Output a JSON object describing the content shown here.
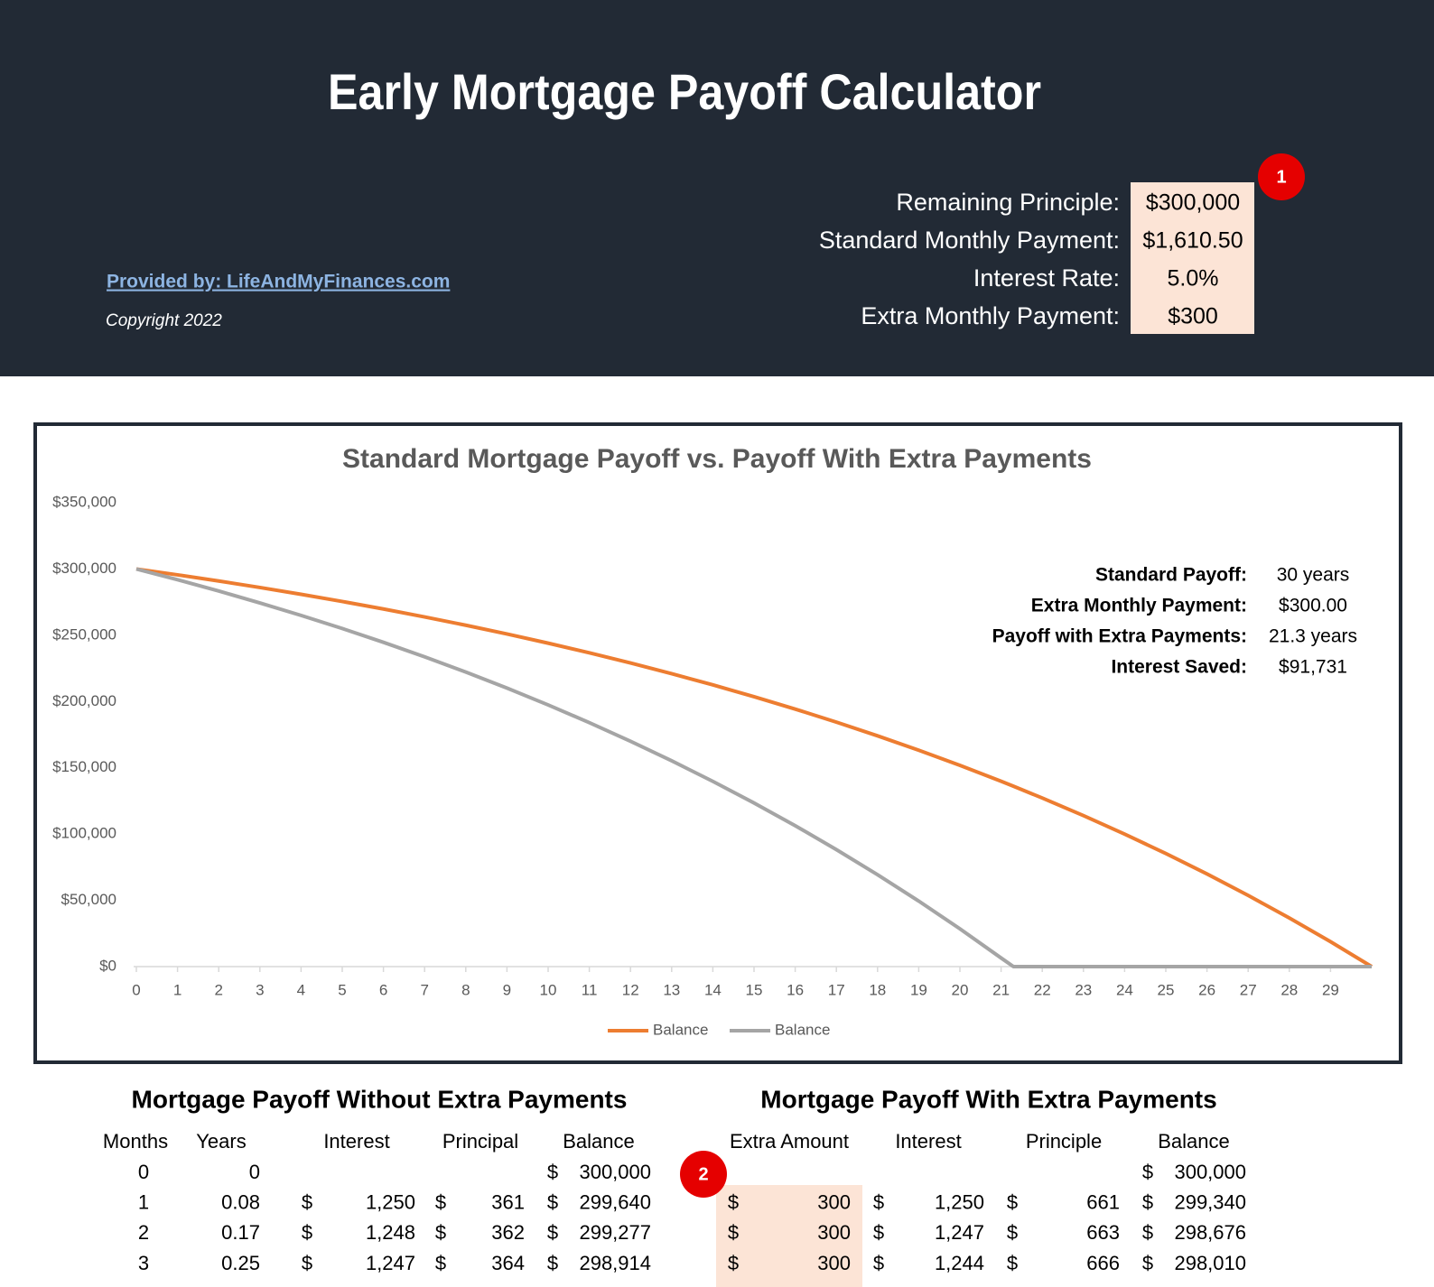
{
  "header": {
    "title": "Early Mortgage Payoff Calculator",
    "link": "Provided by: LifeAndMyFinances.com",
    "copyright": "Copyright 2022",
    "inputs": [
      {
        "label": "Remaining Principle:",
        "value": "$300,000"
      },
      {
        "label": "Standard Monthly Payment:",
        "value": "$1,610.50"
      },
      {
        "label": "Interest Rate:",
        "value": "5.0%"
      },
      {
        "label": "Extra Monthly Payment:",
        "value": "$300"
      }
    ],
    "marker": "1"
  },
  "chart_data": {
    "type": "line",
    "title": "Standard Mortgage Payoff vs. Payoff With Extra Payments",
    "x": [
      0,
      1,
      2,
      3,
      4,
      5,
      6,
      7,
      8,
      9,
      10,
      11,
      12,
      13,
      14,
      15,
      16,
      17,
      18,
      19,
      20,
      21,
      21.3,
      22,
      23,
      24,
      25,
      26,
      27,
      28,
      29,
      30
    ],
    "xlim": [
      0,
      30
    ],
    "xticks": [
      0,
      1,
      2,
      3,
      4,
      5,
      6,
      7,
      8,
      9,
      10,
      11,
      12,
      13,
      14,
      15,
      16,
      17,
      18,
      19,
      20,
      21,
      22,
      23,
      24,
      25,
      26,
      27,
      28,
      29
    ],
    "ylim": [
      0,
      350000
    ],
    "yticks": [
      {
        "value": 0,
        "label": "$0"
      },
      {
        "value": 50000,
        "label": "$50,000"
      },
      {
        "value": 100000,
        "label": "$100,000"
      },
      {
        "value": 150000,
        "label": "$150,000"
      },
      {
        "value": 200000,
        "label": "$200,000"
      },
      {
        "value": 250000,
        "label": "$250,000"
      },
      {
        "value": 300000,
        "label": "$300,000"
      },
      {
        "value": 350000,
        "label": "$350,000"
      }
    ],
    "series": [
      {
        "name": "Balance",
        "color": "#ed7d31",
        "values": [
          300000,
          295574,
          290921,
          286030,
          280889,
          275484,
          269803,
          263831,
          257554,
          250956,
          244021,
          236730,
          229067,
          221011,
          212543,
          203643,
          194286,
          184451,
          174112,
          163246,
          151822,
          139814,
          136086,
          127193,
          113925,
          99978,
          85318,
          69908,
          53709,
          36682,
          18784,
          0
        ]
      },
      {
        "name": "Balance",
        "color": "#a5a5a5",
        "values": [
          300000,
          291887,
          283365,
          274404,
          264984,
          255082,
          244673,
          233732,
          222232,
          210143,
          197436,
          184077,
          170037,
          155277,
          139763,
          123456,
          106312,
          88293,
          69352,
          49442,
          28512,
          6511,
          0,
          0,
          0,
          0,
          0,
          0,
          0,
          0,
          0,
          0
        ]
      }
    ],
    "stats": [
      {
        "label": "Standard Payoff:",
        "value": "30 years"
      },
      {
        "label": "Extra Monthly Payment:",
        "value": "$300.00"
      },
      {
        "label": "Payoff with Extra Payments:",
        "value": "21.3 years"
      },
      {
        "label": "Interest Saved:",
        "value": "$91,731"
      }
    ]
  },
  "currency": "$",
  "table_left": {
    "title": "Mortgage Payoff Without Extra Payments",
    "columns": [
      "Months",
      "Years",
      "Interest",
      "Principal",
      "Balance"
    ],
    "rows": [
      [
        "0",
        "0",
        null,
        null,
        "300,000"
      ],
      [
        "1",
        "0.08",
        "1,250",
        "361",
        "299,640"
      ],
      [
        "2",
        "0.17",
        "1,248",
        "362",
        "299,277"
      ],
      [
        "3",
        "0.25",
        "1,247",
        "364",
        "298,914"
      ]
    ]
  },
  "table_right": {
    "title": "Mortgage Payoff With Extra Payments",
    "marker": "2",
    "columns": [
      "Extra Amount",
      "Interest",
      "Principle",
      "Balance"
    ],
    "rows": [
      [
        null,
        null,
        null,
        "300,000"
      ],
      [
        "300",
        "1,250",
        "661",
        "299,340"
      ],
      [
        "300",
        "1,247",
        "663",
        "298,676"
      ],
      [
        "300",
        "1,244",
        "666",
        "298,010"
      ]
    ]
  }
}
